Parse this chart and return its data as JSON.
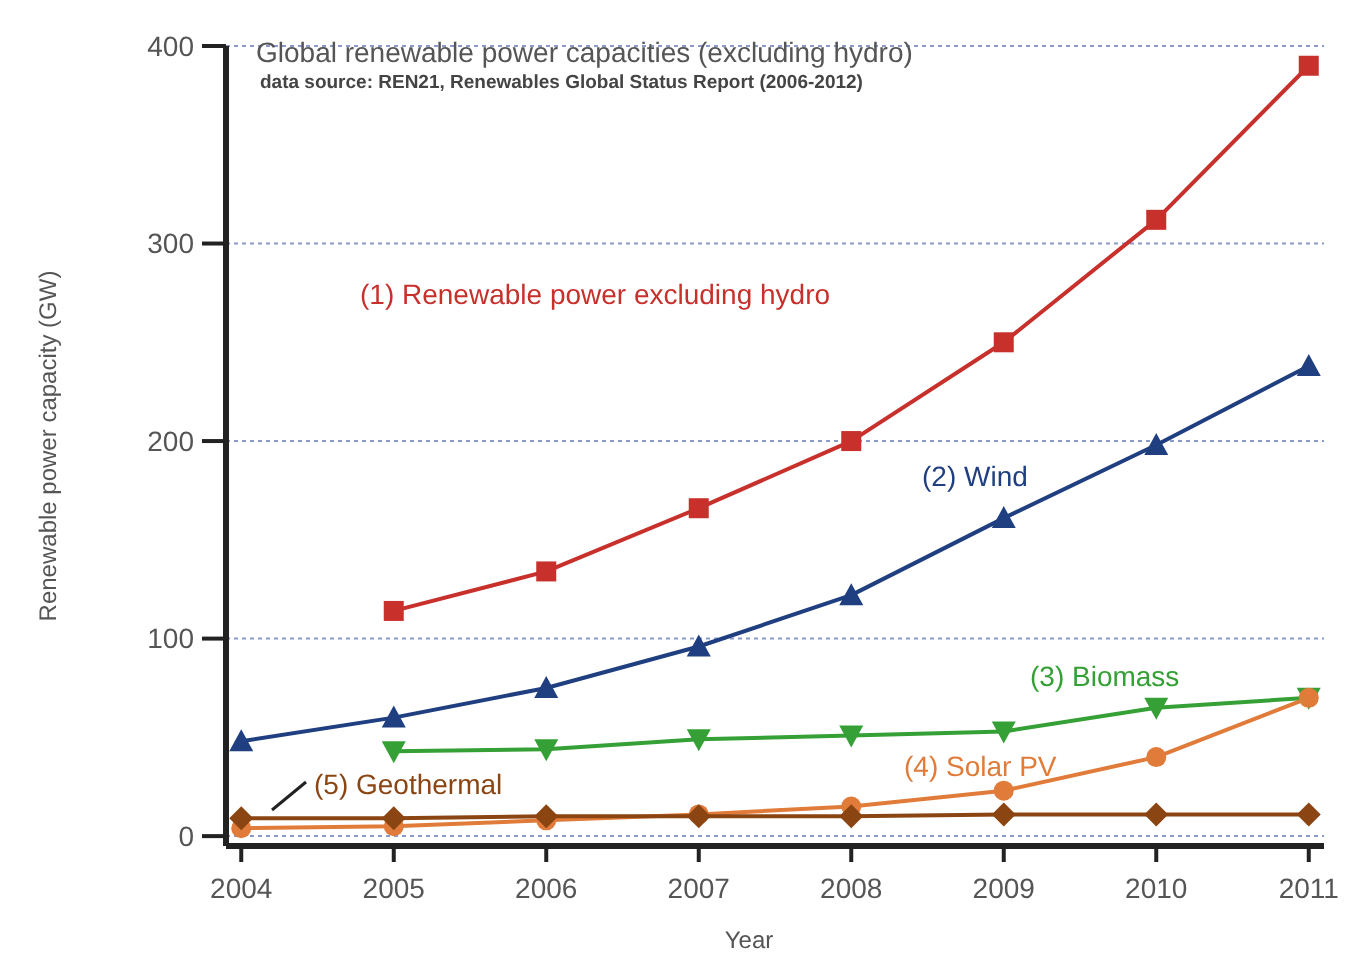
{
  "chart_data": {
    "type": "line",
    "title": "Global renewable power capacities (excluding hydro)",
    "subtitle": "data source: REN21, Renewables Global Status Report (2006-2012)",
    "xlabel": "Year",
    "ylabel": "Renewable power capacity (GW)",
    "x": [
      2004,
      2005,
      2006,
      2007,
      2008,
      2009,
      2010,
      2011
    ],
    "xlim": [
      2003.9,
      2011.1
    ],
    "xticks": [
      2004,
      2005,
      2006,
      2007,
      2008,
      2009,
      2010,
      2011
    ],
    "ylim": [
      -5,
      400
    ],
    "yticks": [
      0,
      100,
      200,
      300,
      400
    ],
    "grid": "y",
    "series": [
      {
        "name": "(1) Renewable power excluding hydro",
        "color": "#c8302c",
        "marker": "square",
        "values": [
          null,
          114,
          134,
          166,
          200,
          250,
          312,
          390
        ]
      },
      {
        "name": "(2) Wind",
        "color": "#1f3f80",
        "marker": "triangle",
        "values": [
          48,
          60,
          75,
          96,
          122,
          161,
          198,
          238
        ]
      },
      {
        "name": "(3) Biomass",
        "color": "#35a035",
        "marker": "triangle-down",
        "values": [
          null,
          43,
          44,
          49,
          51,
          53,
          65,
          70
        ]
      },
      {
        "name": "(4) Solar PV",
        "color": "#e07b39",
        "marker": "circle",
        "values": [
          4,
          5,
          8,
          11,
          15,
          23,
          40,
          70
        ]
      },
      {
        "name": "(5) Geothermal",
        "color": "#8b4513",
        "marker": "diamond",
        "values": [
          9,
          9,
          10,
          10,
          10,
          11,
          11,
          11
        ]
      }
    ]
  }
}
